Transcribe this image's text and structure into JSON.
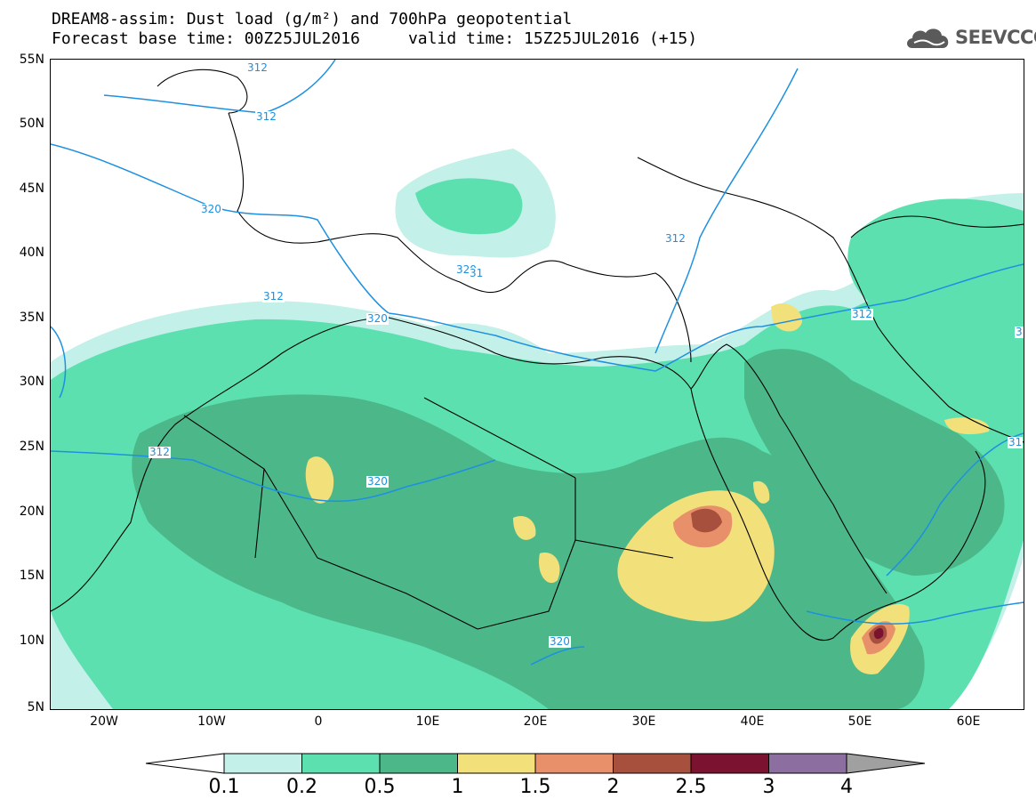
{
  "header": {
    "title_line1": "DREAM8-assim: Dust load (g/m²) and 700hPa geopotential",
    "title_line2": "Forecast base time: 00Z25JUL2016     valid time: 15Z25JUL2016 (+15)",
    "logo_text": "SEEVCCC"
  },
  "map": {
    "lat_ticks": [
      "55N",
      "50N",
      "45N",
      "40N",
      "35N",
      "30N",
      "25N",
      "20N",
      "15N",
      "10N",
      "5N"
    ],
    "lon_ticks": [
      "20W",
      "10W",
      "0",
      "10E",
      "20E",
      "30E",
      "40E",
      "50E",
      "60E"
    ],
    "contour_labels": [
      "320",
      "312",
      "320",
      "312",
      "320",
      "312",
      "320",
      "312",
      "312",
      "320",
      "312",
      "312",
      "31",
      "31"
    ],
    "colors": {
      "land_border": "#000000",
      "contour": "#1e90e0",
      "dust_01": "#c3f0e8",
      "dust_02": "#5ce0b0",
      "dust_05": "#4cb88a",
      "dust_1": "#f2e07a",
      "dust_15": "#e8906a",
      "dust_2": "#a8503e",
      "dust_25": "#7a1230",
      "dust_3": "#8c6ea0",
      "dust_4": "#a0a0a0"
    }
  },
  "colorbar": {
    "labels": [
      "0.1",
      "0.2",
      "0.5",
      "1",
      "1.5",
      "2",
      "2.5",
      "3",
      "4"
    ],
    "colors": [
      "#c3f0e8",
      "#5ce0b0",
      "#4cb88a",
      "#f2e07a",
      "#e8906a",
      "#a8503e",
      "#7a1230",
      "#8c6ea0"
    ]
  }
}
